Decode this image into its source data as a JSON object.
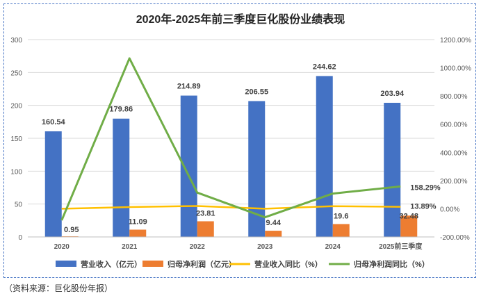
{
  "source_note": "（资料来源：巨化股份年报）",
  "chart_data": {
    "type": "bar",
    "title": "2020年-2025年前三季度巨化股份业绩表现",
    "categories": [
      "2020",
      "2021",
      "2022",
      "2023",
      "2024",
      "2025前三季度"
    ],
    "y_left": {
      "ylim": [
        0,
        300
      ],
      "ticks": [
        "0",
        "50",
        "100",
        "150",
        "200",
        "250",
        "300"
      ]
    },
    "y_right": {
      "ylim": [
        -200,
        1200
      ],
      "ticks": [
        "-200.00%",
        "0.00%",
        "200.00%",
        "400.00%",
        "600.00%",
        "800.00%",
        "1000.00%",
        "1200.00%"
      ]
    },
    "series": [
      {
        "name": "营业收入（亿元）",
        "type": "bar",
        "axis": "left",
        "color": "#4472c4",
        "values": [
          160.54,
          179.86,
          214.89,
          206.55,
          244.62,
          203.94
        ],
        "labels": [
          "160.54",
          "179.86",
          "214.89",
          "206.55",
          "244.62",
          "203.94"
        ]
      },
      {
        "name": "归母净利润（亿元）",
        "type": "bar",
        "axis": "left",
        "color": "#ed7d31",
        "values": [
          0.95,
          11.09,
          23.81,
          9.44,
          19.6,
          32.48
        ],
        "labels": [
          "0.95",
          "11.09",
          "23.81",
          "9.44",
          "19.6",
          "32.48"
        ]
      },
      {
        "name": "营业收入同比（%）",
        "type": "line",
        "axis": "right",
        "color": "#ffc000",
        "values": [
          0,
          12,
          19.5,
          0,
          18,
          13.89
        ],
        "labels": [
          "",
          "",
          "",
          "",
          "",
          "13.89%"
        ]
      },
      {
        "name": "归母净利润同比（%）",
        "type": "line",
        "axis": "right",
        "color": "#70ad47",
        "values": [
          -82,
          1067,
          114.7,
          -60.4,
          107.6,
          158.29
        ],
        "labels": [
          "",
          "",
          "",
          "",
          "",
          "158.29%"
        ]
      }
    ]
  }
}
